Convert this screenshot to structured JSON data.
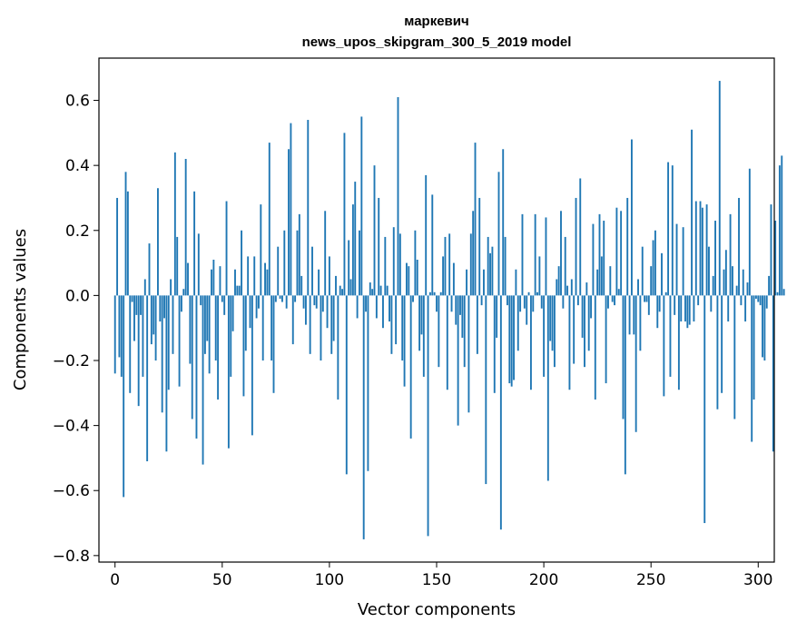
{
  "chart_data": {
    "type": "bar",
    "title": "маркевич",
    "subtitle": "news_upos_skipgram_300_5_2019 model",
    "xlabel": "Vector components",
    "ylabel": "Components values",
    "xlim": [
      -7.5,
      307.5
    ],
    "ylim": [
      -0.82,
      0.73
    ],
    "xticks": [
      0,
      50,
      100,
      150,
      200,
      250,
      300
    ],
    "yticks": [
      -0.8,
      -0.6,
      -0.4,
      -0.2,
      0.0,
      0.2,
      0.4,
      0.6
    ],
    "xtick_labels": [
      "0",
      "50",
      "100",
      "150",
      "200",
      "250",
      "300"
    ],
    "ytick_labels": [
      "−0.8",
      "−0.6",
      "−0.4",
      "−0.2",
      "0.0",
      "0.2",
      "0.4",
      "0.6"
    ],
    "grid": false,
    "bar_color": "#1f77b4",
    "values": [
      -0.24,
      0.3,
      -0.19,
      -0.25,
      -0.62,
      0.38,
      0.32,
      -0.3,
      -0.02,
      -0.14,
      -0.06,
      -0.34,
      -0.06,
      -0.25,
      0.05,
      -0.51,
      0.16,
      -0.15,
      -0.12,
      -0.2,
      0.33,
      -0.08,
      -0.36,
      -0.07,
      -0.48,
      -0.29,
      0.05,
      -0.18,
      0.44,
      0.18,
      -0.28,
      -0.05,
      0.02,
      0.42,
      0.1,
      -0.21,
      -0.38,
      0.32,
      -0.44,
      0.19,
      -0.03,
      -0.52,
      -0.18,
      -0.14,
      -0.24,
      0.08,
      0.11,
      -0.2,
      -0.32,
      0.09,
      -0.02,
      -0.06,
      0.29,
      -0.47,
      -0.25,
      -0.11,
      0.08,
      0.03,
      0.03,
      0.2,
      -0.31,
      -0.17,
      0.12,
      -0.1,
      -0.43,
      0.12,
      -0.07,
      -0.04,
      0.28,
      -0.2,
      0.1,
      0.08,
      0.47,
      -0.2,
      -0.3,
      -0.02,
      0.15,
      -0.01,
      -0.02,
      0.2,
      -0.04,
      0.45,
      0.53,
      -0.15,
      -0.02,
      0.2,
      0.25,
      0.06,
      -0.04,
      -0.09,
      0.54,
      -0.18,
      0.15,
      -0.03,
      -0.04,
      0.08,
      -0.2,
      -0.05,
      0.26,
      -0.1,
      0.12,
      -0.18,
      -0.14,
      0.06,
      -0.32,
      0.03,
      0.02,
      0.5,
      -0.55,
      0.17,
      0.05,
      0.28,
      0.35,
      -0.07,
      0.2,
      0.55,
      -0.75,
      -0.05,
      -0.54,
      0.04,
      0.02,
      0.4,
      -0.07,
      0.3,
      0.03,
      -0.1,
      0.18,
      0.03,
      -0.08,
      -0.18,
      0.21,
      -0.15,
      0.61,
      0.19,
      -0.2,
      -0.28,
      0.1,
      0.09,
      -0.44,
      -0.02,
      0.2,
      0.11,
      -0.17,
      -0.12,
      -0.25,
      0.37,
      -0.74,
      0.01,
      0.31,
      0.01,
      -0.05,
      -0.22,
      0.01,
      0.12,
      0.18,
      -0.29,
      0.19,
      -0.05,
      0.1,
      -0.09,
      -0.4,
      -0.06,
      -0.13,
      -0.22,
      0.08,
      -0.36,
      0.19,
      0.26,
      0.47,
      -0.18,
      0.3,
      -0.03,
      0.08,
      -0.58,
      0.18,
      0.13,
      0.15,
      -0.3,
      -0.13,
      0.38,
      -0.72,
      0.45,
      0.18,
      -0.03,
      -0.27,
      -0.28,
      -0.26,
      0.08,
      -0.17,
      -0.05,
      0.25,
      -0.04,
      -0.09,
      0.01,
      -0.29,
      -0.05,
      0.25,
      0.01,
      0.12,
      -0.04,
      -0.25,
      0.24,
      -0.57,
      -0.14,
      -0.17,
      -0.22,
      0.05,
      0.09,
      0.26,
      -0.04,
      0.18,
      0.03,
      -0.29,
      0.05,
      -0.21,
      0.3,
      -0.03,
      0.36,
      -0.13,
      -0.22,
      0.04,
      -0.17,
      -0.07,
      0.22,
      -0.32,
      0.08,
      0.25,
      0.12,
      0.23,
      -0.27,
      -0.04,
      0.09,
      -0.02,
      -0.03,
      0.27,
      0.02,
      0.26,
      -0.38,
      -0.55,
      0.3,
      -0.12,
      0.48,
      -0.12,
      -0.42,
      0.05,
      -0.17,
      0.15,
      -0.02,
      -0.02,
      -0.06,
      0.09,
      0.17,
      0.2,
      -0.1,
      -0.05,
      0.13,
      -0.31,
      0.01,
      0.41,
      -0.25,
      0.4,
      -0.06,
      0.22,
      -0.29,
      -0.08,
      0.21,
      -0.08,
      -0.1,
      -0.09,
      0.51,
      -0.08,
      0.29,
      -0.03,
      0.29,
      0.27,
      -0.7,
      0.28,
      0.15,
      -0.05,
      0.06,
      0.23,
      -0.35,
      0.66,
      -0.3,
      0.08,
      0.14,
      -0.08,
      0.25,
      0.09,
      -0.38,
      0.03,
      0.3,
      -0.03,
      0.08,
      -0.08,
      0.04,
      0.39,
      -0.45,
      -0.32,
      -0.01,
      -0.02,
      -0.03,
      -0.19,
      -0.2,
      -0.04,
      0.06,
      0.28,
      -0.48,
      0.23,
      0.01,
      0.4,
      0.43,
      0.02
    ]
  }
}
